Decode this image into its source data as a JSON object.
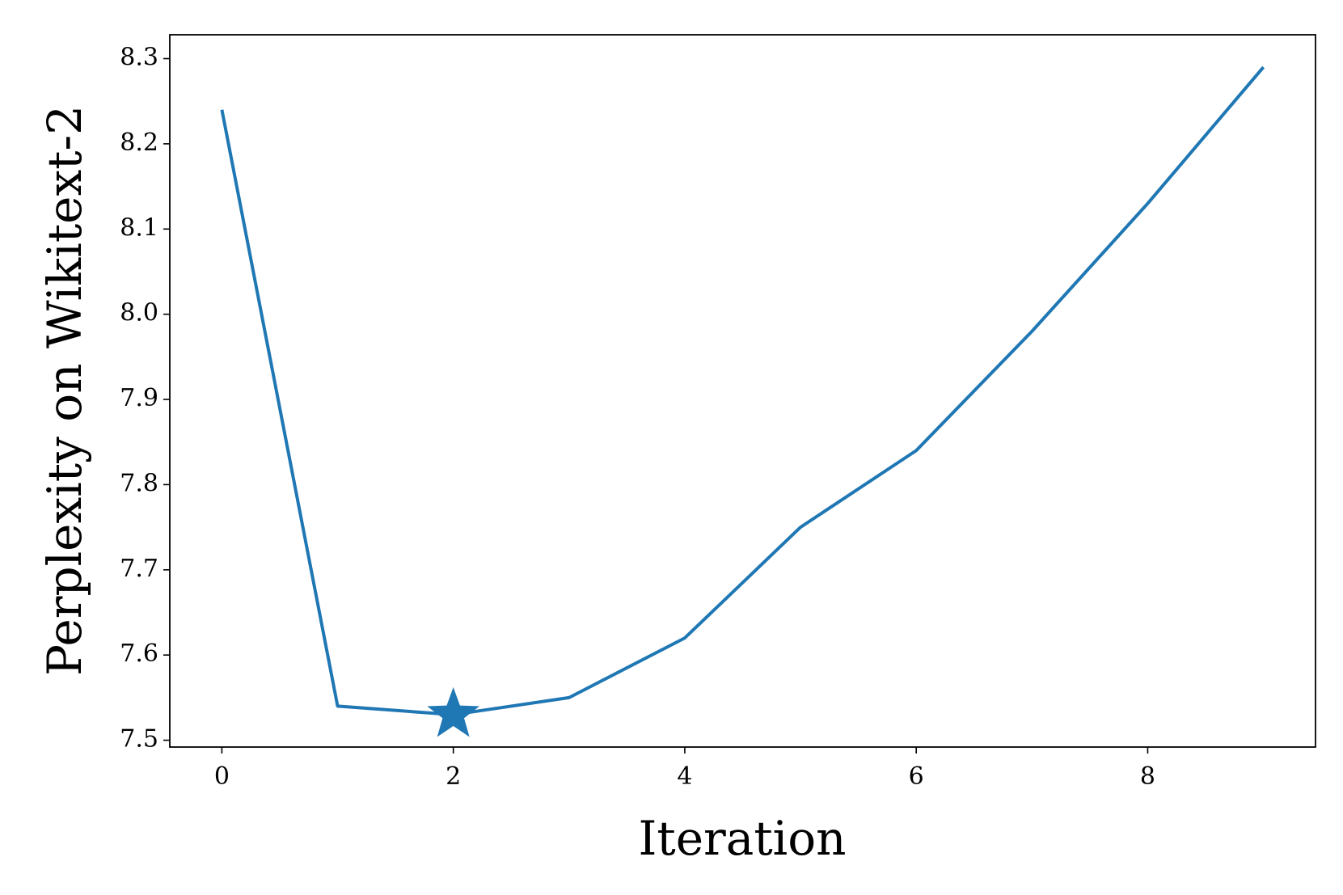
{
  "chart_data": {
    "type": "line",
    "x_label": "Iteration",
    "y_label": "Perplexity on Wikitext-2",
    "x": [
      0,
      1,
      2,
      3,
      4,
      5,
      6,
      7,
      8,
      9
    ],
    "series": [
      {
        "color": "#1f77b4",
        "values": [
          8.24,
          7.54,
          7.53,
          7.55,
          7.62,
          7.75,
          7.84,
          7.98,
          8.13,
          8.29
        ]
      }
    ],
    "highlight": {
      "x": 2,
      "y": 7.53,
      "marker": "star",
      "color": "#1f77b4"
    },
    "xlim": [
      -0.45,
      9.45
    ],
    "ylim": [
      7.492,
      8.328
    ],
    "xticks": [
      0,
      2,
      4,
      6,
      8
    ],
    "yticks": [
      7.5,
      7.6,
      7.7,
      7.8,
      7.9,
      {
        "value": 8,
        "label": "8.0"
      },
      8.1,
      8.2,
      8.3
    ],
    "grid": false
  }
}
